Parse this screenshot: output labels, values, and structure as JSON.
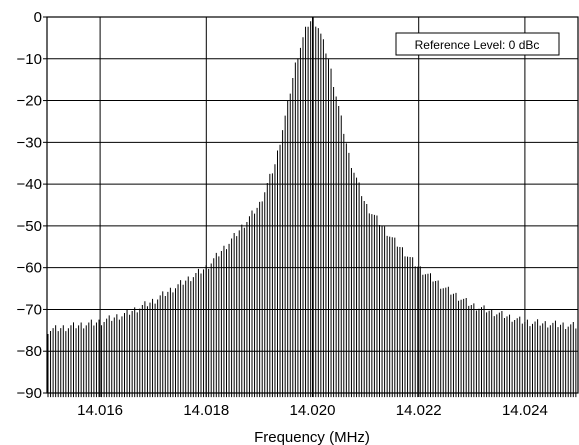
{
  "chart_data": {
    "type": "line",
    "title": "",
    "xlabel": "Frequency (MHz)",
    "ylabel": "",
    "xlim": [
      14.015,
      14.025
    ],
    "ylim": [
      -90,
      0
    ],
    "x_ticks": [
      14.016,
      14.018,
      14.02,
      14.022,
      14.024
    ],
    "x_tick_labels": [
      "14.016",
      "14.018",
      "14.020",
      "14.022",
      "14.024"
    ],
    "y_ticks": [
      0,
      -10,
      -20,
      -30,
      -40,
      -50,
      -60,
      -70,
      -80,
      -90
    ],
    "y_tick_labels": [
      "0",
      "−10",
      "−20",
      "−30",
      "−40",
      "−50",
      "−60",
      "−70",
      "−80",
      "−90"
    ],
    "grid": true,
    "annotation": "Reference Level: 0 dBc",
    "series": [
      {
        "color": "#000000",
        "envelope_x": [
          14.015,
          14.016,
          14.0165,
          14.017,
          14.0175,
          14.018,
          14.0185,
          14.019,
          14.0193,
          14.0195,
          14.0197,
          14.0199,
          14.02,
          14.0201,
          14.0203,
          14.0205,
          14.0207,
          14.021,
          14.0215,
          14.022,
          14.0225,
          14.023,
          14.0235,
          14.024,
          14.025
        ],
        "envelope_y": [
          -75,
          -73,
          -71,
          -68,
          -64,
          -60,
          -53,
          -45,
          -35,
          -23,
          -10,
          -2,
          -0.5,
          -2,
          -10,
          -22,
          -34,
          -45,
          -53,
          -60,
          -65,
          -69,
          -71,
          -73,
          -74
        ],
        "floor": -90
      }
    ]
  }
}
